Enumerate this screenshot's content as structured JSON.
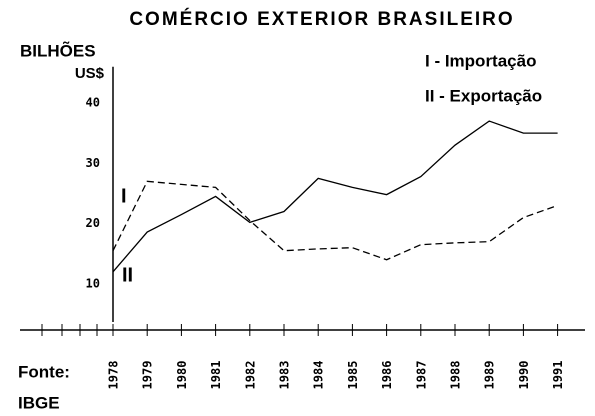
{
  "chart_data": {
    "type": "line",
    "title": "COMÉRCIO EXTERIOR BRASILEIRO",
    "y_label_1": "BILHÕES",
    "y_label_2": "US$",
    "source_label": "Fonte:",
    "source": "IBGE",
    "annotations": [
      "I",
      "II"
    ],
    "categories": [
      "1978",
      "1979",
      "1980",
      "1981",
      "1982",
      "1983",
      "1984",
      "1985",
      "1986",
      "1987",
      "1988",
      "1989",
      "1990",
      "1991"
    ],
    "series": [
      {
        "name": "I - Importação",
        "color": "#000000",
        "dash": true,
        "values": [
          15.5,
          27,
          26.5,
          26,
          20.5,
          15.5,
          15.8,
          16,
          14,
          16.5,
          16.8,
          17,
          21,
          23
        ]
      },
      {
        "name": "II - Exportação",
        "color": "#000000",
        "dash": false,
        "values": [
          12,
          18.6,
          21.5,
          24.5,
          20.2,
          22,
          27.5,
          26,
          24.8,
          27.8,
          33,
          37,
          35,
          35
        ]
      }
    ],
    "ylim": [
      2.5,
      46
    ],
    "yticks": [
      10,
      20,
      30,
      40
    ],
    "grid": false
  }
}
